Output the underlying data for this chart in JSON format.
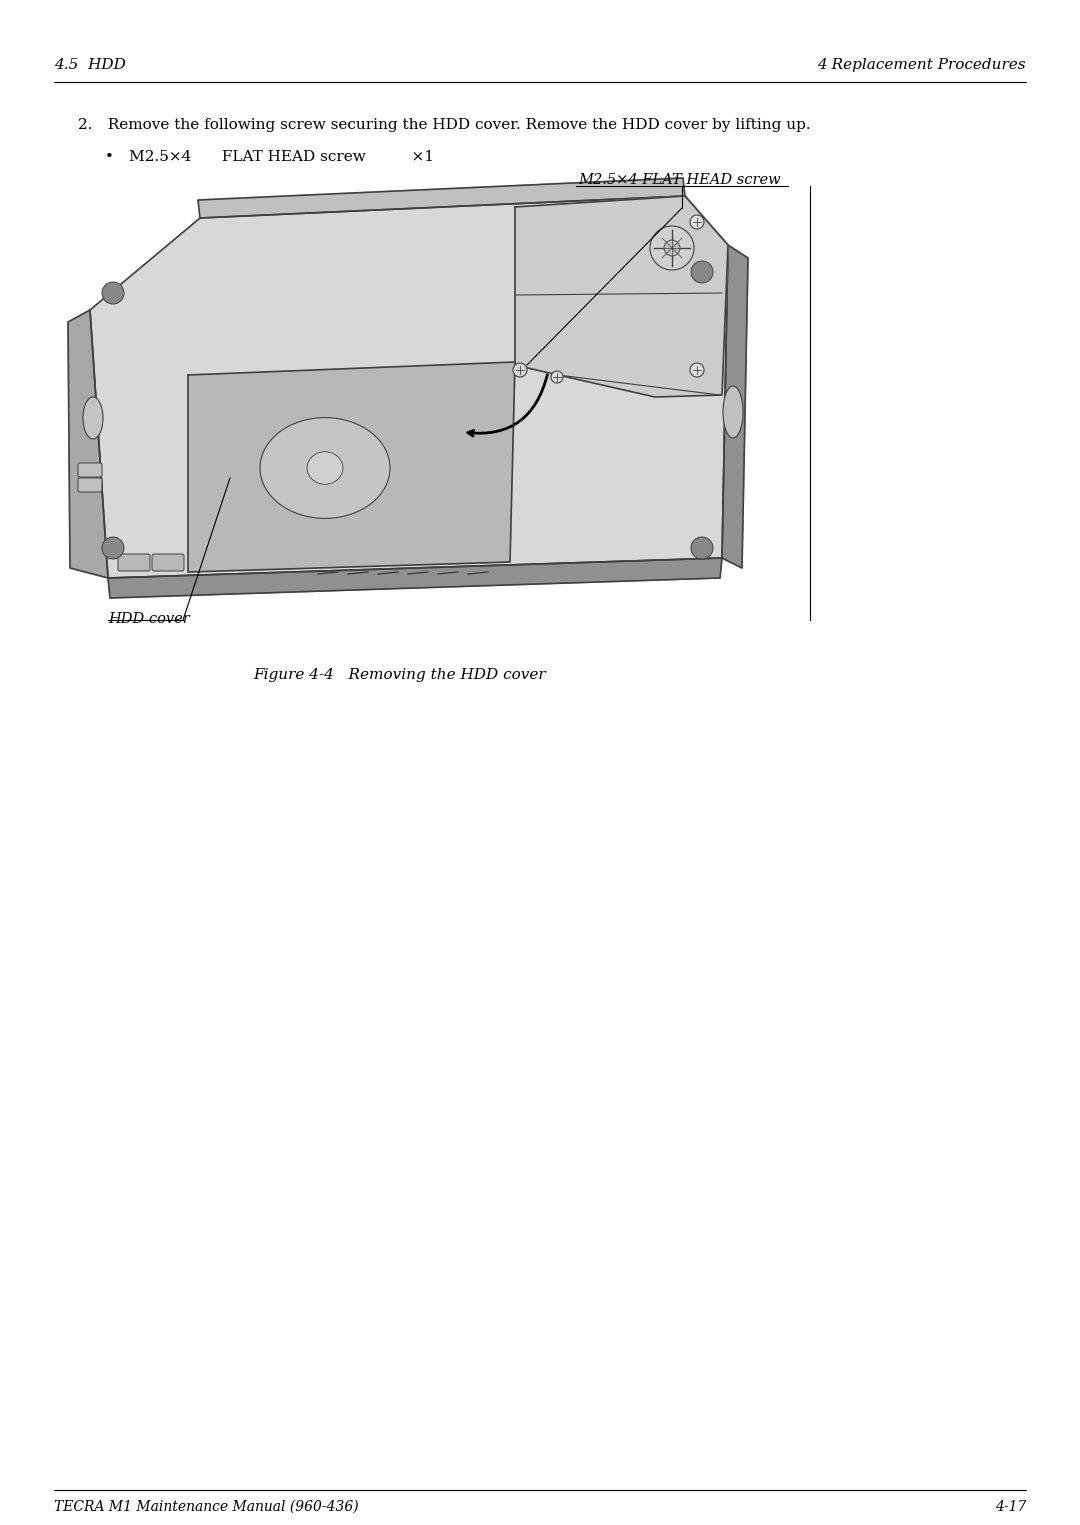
{
  "bg_color": "#ffffff",
  "text_color": "#000000",
  "header_left": "4.5  HDD",
  "header_right": "4 Replacement Procedures",
  "footer_left": "TECRA M1 Maintenance Manual (960-436)",
  "footer_right": "4-17",
  "step_text": "2. Remove the following screw securing the HDD cover. Remove the HDD cover by lifting up.",
  "bullet_text": "• M2.5×4  FLAT HEAD screw   ×1",
  "label_screw": "M2.5×4 FLAT HEAD screw",
  "label_hdd_cover": "HDD cover",
  "figure_caption": "Figure 4-4   Removing the HDD cover",
  "header_fontsize": 11,
  "body_fontsize": 11,
  "label_fontsize": 10.5,
  "footer_fontsize": 10,
  "laptop_color": "#d8d8d8",
  "laptop_dark": "#a8a8a8",
  "laptop_outline": "#404040",
  "hdd_cover_color": "#b8b8b8",
  "hdd_cover_dark": "#909090"
}
